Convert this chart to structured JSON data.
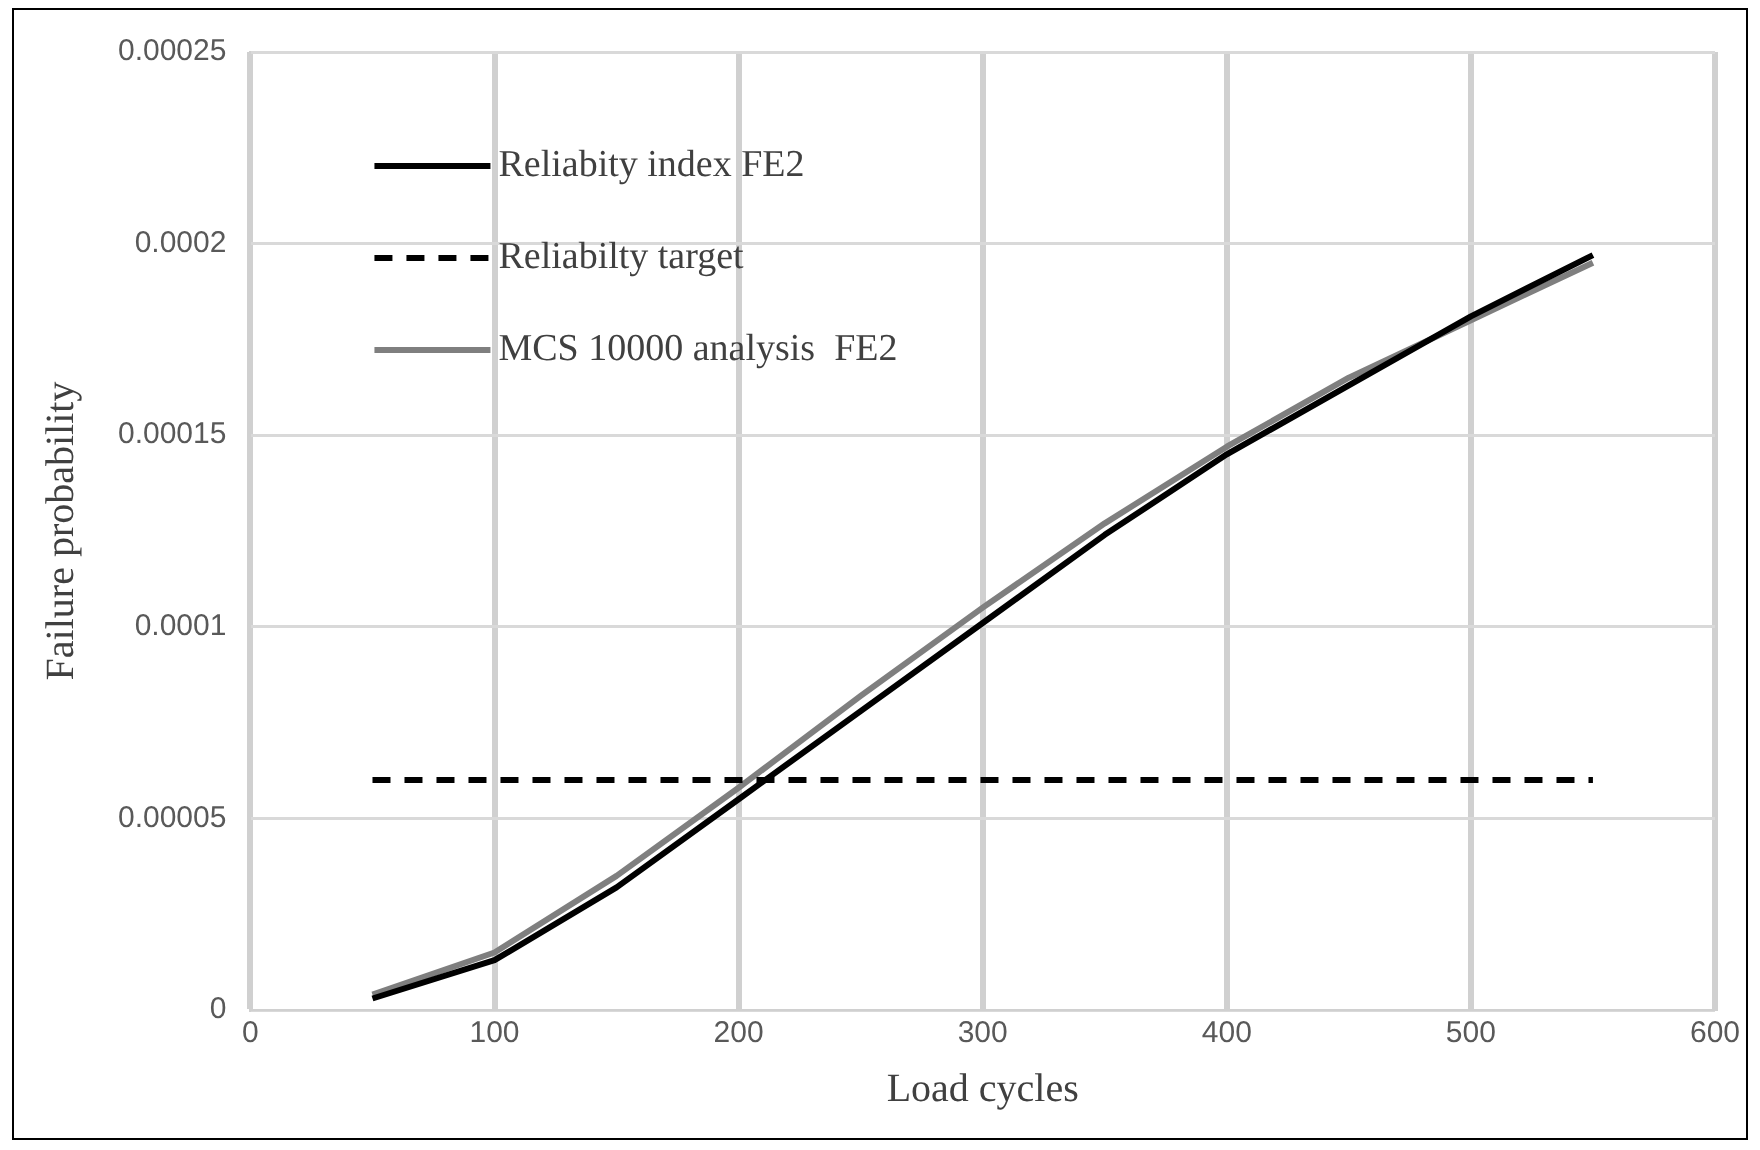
{
  "chart_data": {
    "type": "line",
    "xlabel": "Load cycles",
    "ylabel": "Failure probability",
    "xlim": [
      0,
      600
    ],
    "xticks": [
      0,
      100,
      200,
      300,
      400,
      500,
      600
    ],
    "ylim": [
      0,
      0.00025
    ],
    "yticks": [
      0,
      {
        "value": 5e-05,
        "label": "0.00005"
      },
      0.0001,
      0.00015,
      0.0002,
      0.00025
    ],
    "grid": true,
    "legend": "top left",
    "marker": "none",
    "series": [
      {
        "name": "Reliabity index FE2",
        "color": "#000000",
        "line_style": "solid",
        "x": [
          50,
          100,
          150,
          200,
          250,
          300,
          350,
          400,
          450,
          500,
          550
        ],
        "values": [
          3e-06,
          1.3e-05,
          3.2e-05,
          5.5e-05,
          7.8e-05,
          0.000101,
          0.000124,
          0.000145,
          0.000163,
          0.000181,
          0.000197
        ]
      },
      {
        "name": "Reliabilty target",
        "color": "#000000",
        "line_style": "dashed",
        "x": [
          50,
          550
        ],
        "values": [
          6e-05,
          6e-05
        ]
      },
      {
        "name": "MCS 10000 analysis  FE2",
        "color": "#7f7f7f",
        "line_style": "solid",
        "x": [
          50,
          100,
          150,
          200,
          250,
          300,
          350,
          400,
          450,
          500,
          550
        ],
        "values": [
          4e-06,
          1.5e-05,
          3.5e-05,
          5.8e-05,
          8.2e-05,
          0.000105,
          0.000127,
          0.000147,
          0.000165,
          0.00018,
          0.000195
        ]
      }
    ]
  }
}
